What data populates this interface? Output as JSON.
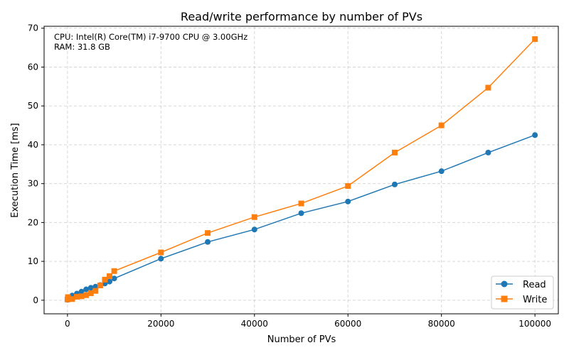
{
  "chart_data": {
    "type": "line",
    "title": "Read/write performance by number of PVs",
    "xlabel": "Number of PVs",
    "ylabel": "Execution Time [ms]",
    "xlim": [
      -5000,
      105000
    ],
    "ylim": [
      -3.5,
      70.5
    ],
    "xticks": [
      0,
      20000,
      40000,
      60000,
      80000,
      100000
    ],
    "yticks": [
      0,
      10,
      20,
      30,
      40,
      50,
      60,
      70
    ],
    "grid": true,
    "legend_position": "lower-right",
    "annotation": [
      "CPU: Intel(R) Core(TM) i7-9700 CPU @ 3.00GHz",
      "RAM: 31.8 GB"
    ],
    "x": [
      10,
      100,
      1000,
      2000,
      3000,
      4000,
      5000,
      6000,
      7000,
      8000,
      9000,
      10000,
      20000,
      30000,
      40000,
      50000,
      60000,
      70000,
      80000,
      90000,
      100000
    ],
    "series": [
      {
        "name": "Read",
        "color": "#1f77b4",
        "marker": "circle",
        "values": [
          0.1,
          0.2,
          1.2,
          1.7,
          2.2,
          2.8,
          3.2,
          3.5,
          3.9,
          4.3,
          4.8,
          5.6,
          10.7,
          15.0,
          18.2,
          22.4,
          25.4,
          29.8,
          33.2,
          38.0,
          42.5
        ]
      },
      {
        "name": "Write",
        "color": "#ff7f0e",
        "marker": "square",
        "values": [
          0.2,
          0.8,
          0.3,
          0.9,
          1.0,
          1.3,
          1.8,
          2.4,
          3.8,
          5.3,
          6.2,
          7.5,
          12.3,
          17.3,
          21.4,
          24.9,
          29.4,
          38.0,
          45.0,
          54.7,
          67.2
        ]
      }
    ]
  }
}
